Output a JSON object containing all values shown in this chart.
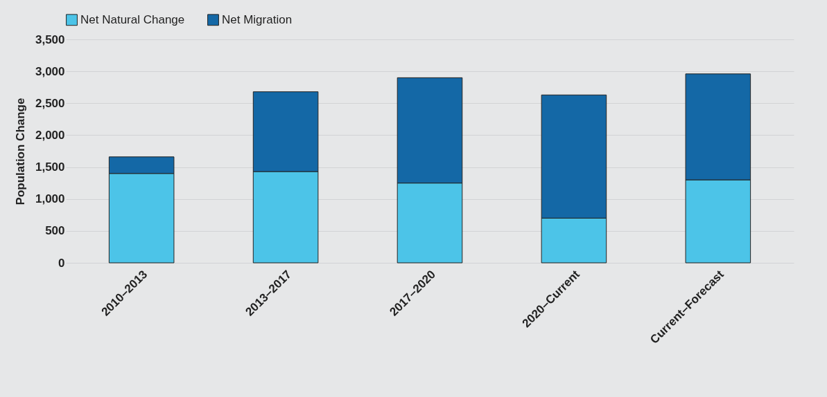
{
  "chart_data": {
    "type": "bar",
    "ylabel": "Population Change",
    "categories": [
      "2010–2013",
      "2013–2017",
      "2017–2020",
      "2020–Current",
      "Current–Forecast"
    ],
    "series": [
      {
        "name": "Net Natural Change",
        "color": "#4cc4e8",
        "values": [
          1400,
          1430,
          1250,
          700,
          1300
        ]
      },
      {
        "name": "Net Migration",
        "color": "#1468a6",
        "values": [
          260,
          1250,
          1650,
          1930,
          1660
        ]
      }
    ],
    "stacked": true,
    "ylim": [
      0,
      3500
    ],
    "yticks": [
      {
        "value": 0,
        "label": "0"
      },
      {
        "value": 500,
        "label": "500"
      },
      {
        "value": 1000,
        "label": "1,000"
      },
      {
        "value": 1500,
        "label": "1,500"
      },
      {
        "value": 2000,
        "label": "2,000"
      },
      {
        "value": 2500,
        "label": "2,500"
      },
      {
        "value": 3000,
        "label": "3,000"
      },
      {
        "value": 3500,
        "label": "3,500"
      }
    ],
    "grid": "y",
    "legend": "top"
  }
}
